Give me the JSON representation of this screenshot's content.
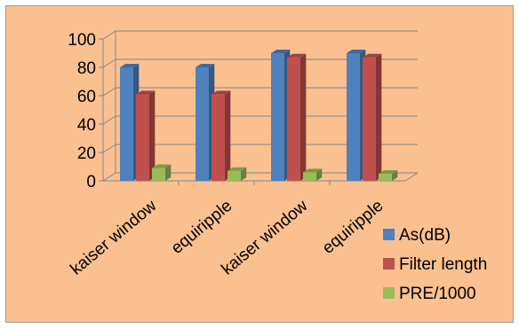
{
  "chart_data": {
    "type": "bar",
    "title": "",
    "xlabel": "",
    "ylabel": "",
    "categories": [
      "kaiser window",
      "equiripple",
      "kaiser window",
      "equiripple"
    ],
    "series": [
      {
        "name": "As(dB)",
        "values": [
          80,
          80,
          90,
          90
        ],
        "color": "#4F81BD"
      },
      {
        "name": "Filter length",
        "values": [
          61,
          61,
          87,
          87
        ],
        "color": "#C0504D"
      },
      {
        "name": "PRE/1000",
        "values": [
          9,
          7,
          6,
          5
        ],
        "color": "#9BBB59"
      }
    ],
    "ylim": [
      0,
      100
    ],
    "yticks": [
      0,
      20,
      40,
      60,
      80,
      100
    ],
    "grid": true,
    "legend_position": "right",
    "style_3d": true,
    "background_color": "#FAC090"
  }
}
